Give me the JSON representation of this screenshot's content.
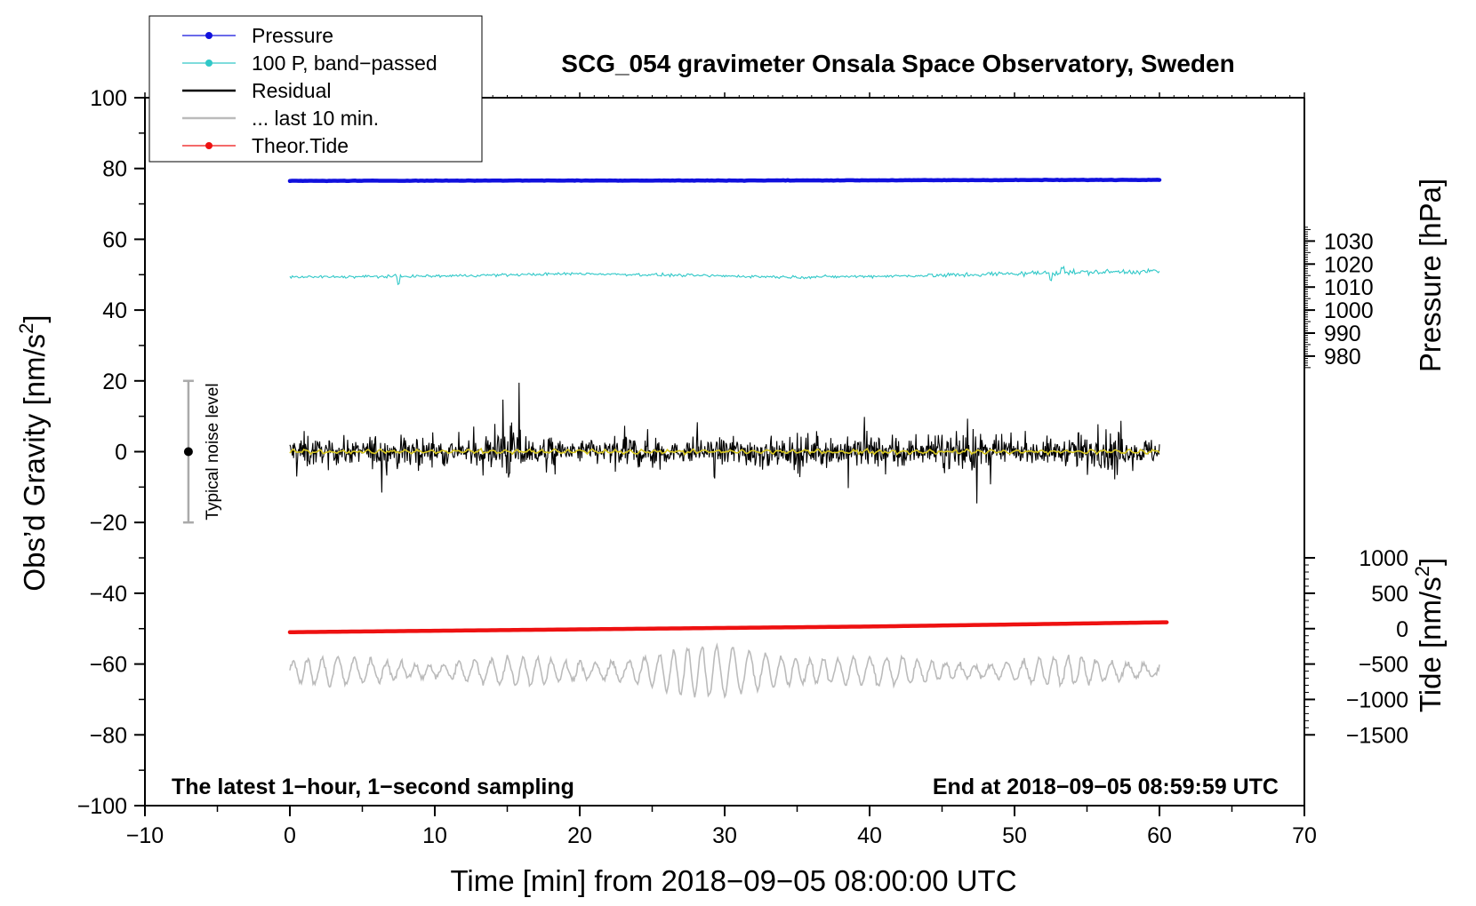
{
  "chart_data": {
    "type": "line",
    "title": "SCG_054 gravimeter Onsala Space Observatory, Sweden",
    "xlabel": "Time [min] from 2018−09−05 08:00:00 UTC",
    "ylabel_left_main": "Obs’d Gravity [nm/s",
    "ylabel_left_sup": "2",
    "ylabel_left_end": "]",
    "ylabel_right_top": "Pressure [hPa]",
    "ylabel_right_bottom_main": "Tide [nm/s",
    "ylabel_right_bottom_sup": "2",
    "ylabel_right_bottom_end": "]",
    "xlim": [
      -10,
      70
    ],
    "ylim": [
      -100,
      100
    ],
    "pressure_axis": {
      "tick_values": [
        980,
        990,
        1000,
        1010,
        1020,
        1030
      ],
      "gravity_at_1000": 40,
      "gravity_per_hpa": 0.65
    },
    "tide_axis": {
      "tick_values": [
        -1500,
        -1000,
        -500,
        0,
        500,
        1000
      ],
      "gravity_at_0": -50,
      "gravity_per_unit": 0.02
    },
    "x_ticks": [
      -10,
      0,
      10,
      20,
      30,
      40,
      50,
      60,
      70
    ],
    "x_tick_labels": [
      "−10",
      "0",
      "10",
      "20",
      "30",
      "40",
      "50",
      "60",
      "70"
    ],
    "y_ticks": [
      -100,
      -80,
      -60,
      -40,
      -20,
      0,
      20,
      40,
      60,
      80,
      100
    ],
    "y_tick_labels": [
      "−100",
      "−80",
      "−60",
      "−40",
      "−20",
      "0",
      "20",
      "40",
      "60",
      "80",
      "100"
    ],
    "pressure_tick_labels": [
      "980",
      "990",
      "1000",
      "1010",
      "1020",
      "1030"
    ],
    "tide_tick_labels": [
      "−1500",
      "−1000",
      "−500",
      "0",
      "500",
      "1000"
    ],
    "legend": [
      {
        "label": "Pressure",
        "color": "#1010dd",
        "marker": true
      },
      {
        "label": "100 P, band−passed",
        "color": "#30c8c8",
        "marker": true
      },
      {
        "label": "Residual",
        "color": "#000000",
        "marker": false
      },
      {
        "label": "... last 10 min.",
        "color": "#bbbbbb",
        "marker": false
      },
      {
        "label": "Theor.Tide",
        "color": "#ee1111",
        "marker": true
      }
    ],
    "annotations": {
      "bottom_left": "The latest 1−hour, 1−second sampling",
      "bottom_right": "End at 2018−09−05 08:59:59 UTC",
      "noise_label": "Typical noise level",
      "noise_bar": {
        "x": -7,
        "center": 0,
        "low": -20,
        "high": 20
      }
    },
    "series": [
      {
        "name": "Pressure",
        "color": "#1010dd",
        "x_range": [
          0,
          60
        ],
        "anchors": [
          [
            0,
            76.5
          ],
          [
            15,
            76.6
          ],
          [
            30,
            76.6
          ],
          [
            45,
            76.7
          ],
          [
            60,
            76.8
          ]
        ],
        "noise": 0.15
      },
      {
        "name": "100 P, band−passed",
        "color": "#30c8c8",
        "x_range": [
          0,
          60
        ],
        "anchors": [
          [
            0,
            49.3
          ],
          [
            10,
            49.6
          ],
          [
            20,
            50.3
          ],
          [
            35,
            49.3
          ],
          [
            45,
            49.8
          ],
          [
            52,
            50.5
          ],
          [
            60,
            51.0
          ]
        ],
        "noise": 0.7
      },
      {
        "name": "Residual",
        "color": "#000000",
        "x_range": [
          0,
          60
        ],
        "center": 0,
        "amplitude": 4.5
      },
      {
        "name": "Residual smoothed",
        "color": "#d8c820",
        "x_range": [
          0,
          60
        ],
        "center": 0,
        "amplitude": 0.6
      },
      {
        "name": "... last 10 min.",
        "color": "#bbbbbb",
        "x_range": [
          0,
          60
        ],
        "center": -62,
        "amplitude": 3.5
      },
      {
        "name": "Theor.Tide",
        "color": "#ee1111",
        "x_range": [
          0,
          60.5
        ],
        "anchors": [
          [
            0,
            -51.0
          ],
          [
            20,
            -50.2
          ],
          [
            40,
            -49.4
          ],
          [
            60.5,
            -48.2
          ]
        ]
      }
    ]
  }
}
